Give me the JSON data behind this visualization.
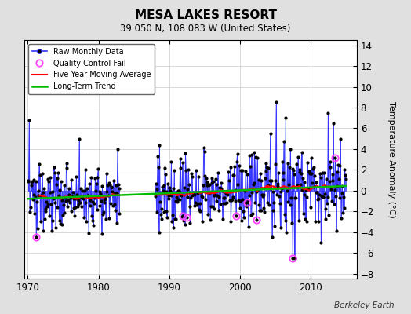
{
  "title": "MESA LAKES RESORT",
  "subtitle": "39.050 N, 108.083 W (United States)",
  "ylabel": "Temperature Anomaly (°C)",
  "credit": "Berkeley Earth",
  "xlim": [
    1969.5,
    2016.5
  ],
  "ylim": [
    -8.5,
    14.5
  ],
  "yticks": [
    -8,
    -6,
    -4,
    -2,
    0,
    2,
    4,
    6,
    8,
    10,
    12,
    14
  ],
  "xticks": [
    1970,
    1980,
    1990,
    2000,
    2010
  ],
  "bg_color": "#e0e0e0",
  "plot_bg_color": "#ffffff",
  "line_color_raw": "#3333ff",
  "line_color_moving_avg": "#ff0000",
  "line_color_trend": "#00bb00",
  "marker_color_raw": "#000000",
  "marker_color_qc": "#ff44ff",
  "seed": 137
}
